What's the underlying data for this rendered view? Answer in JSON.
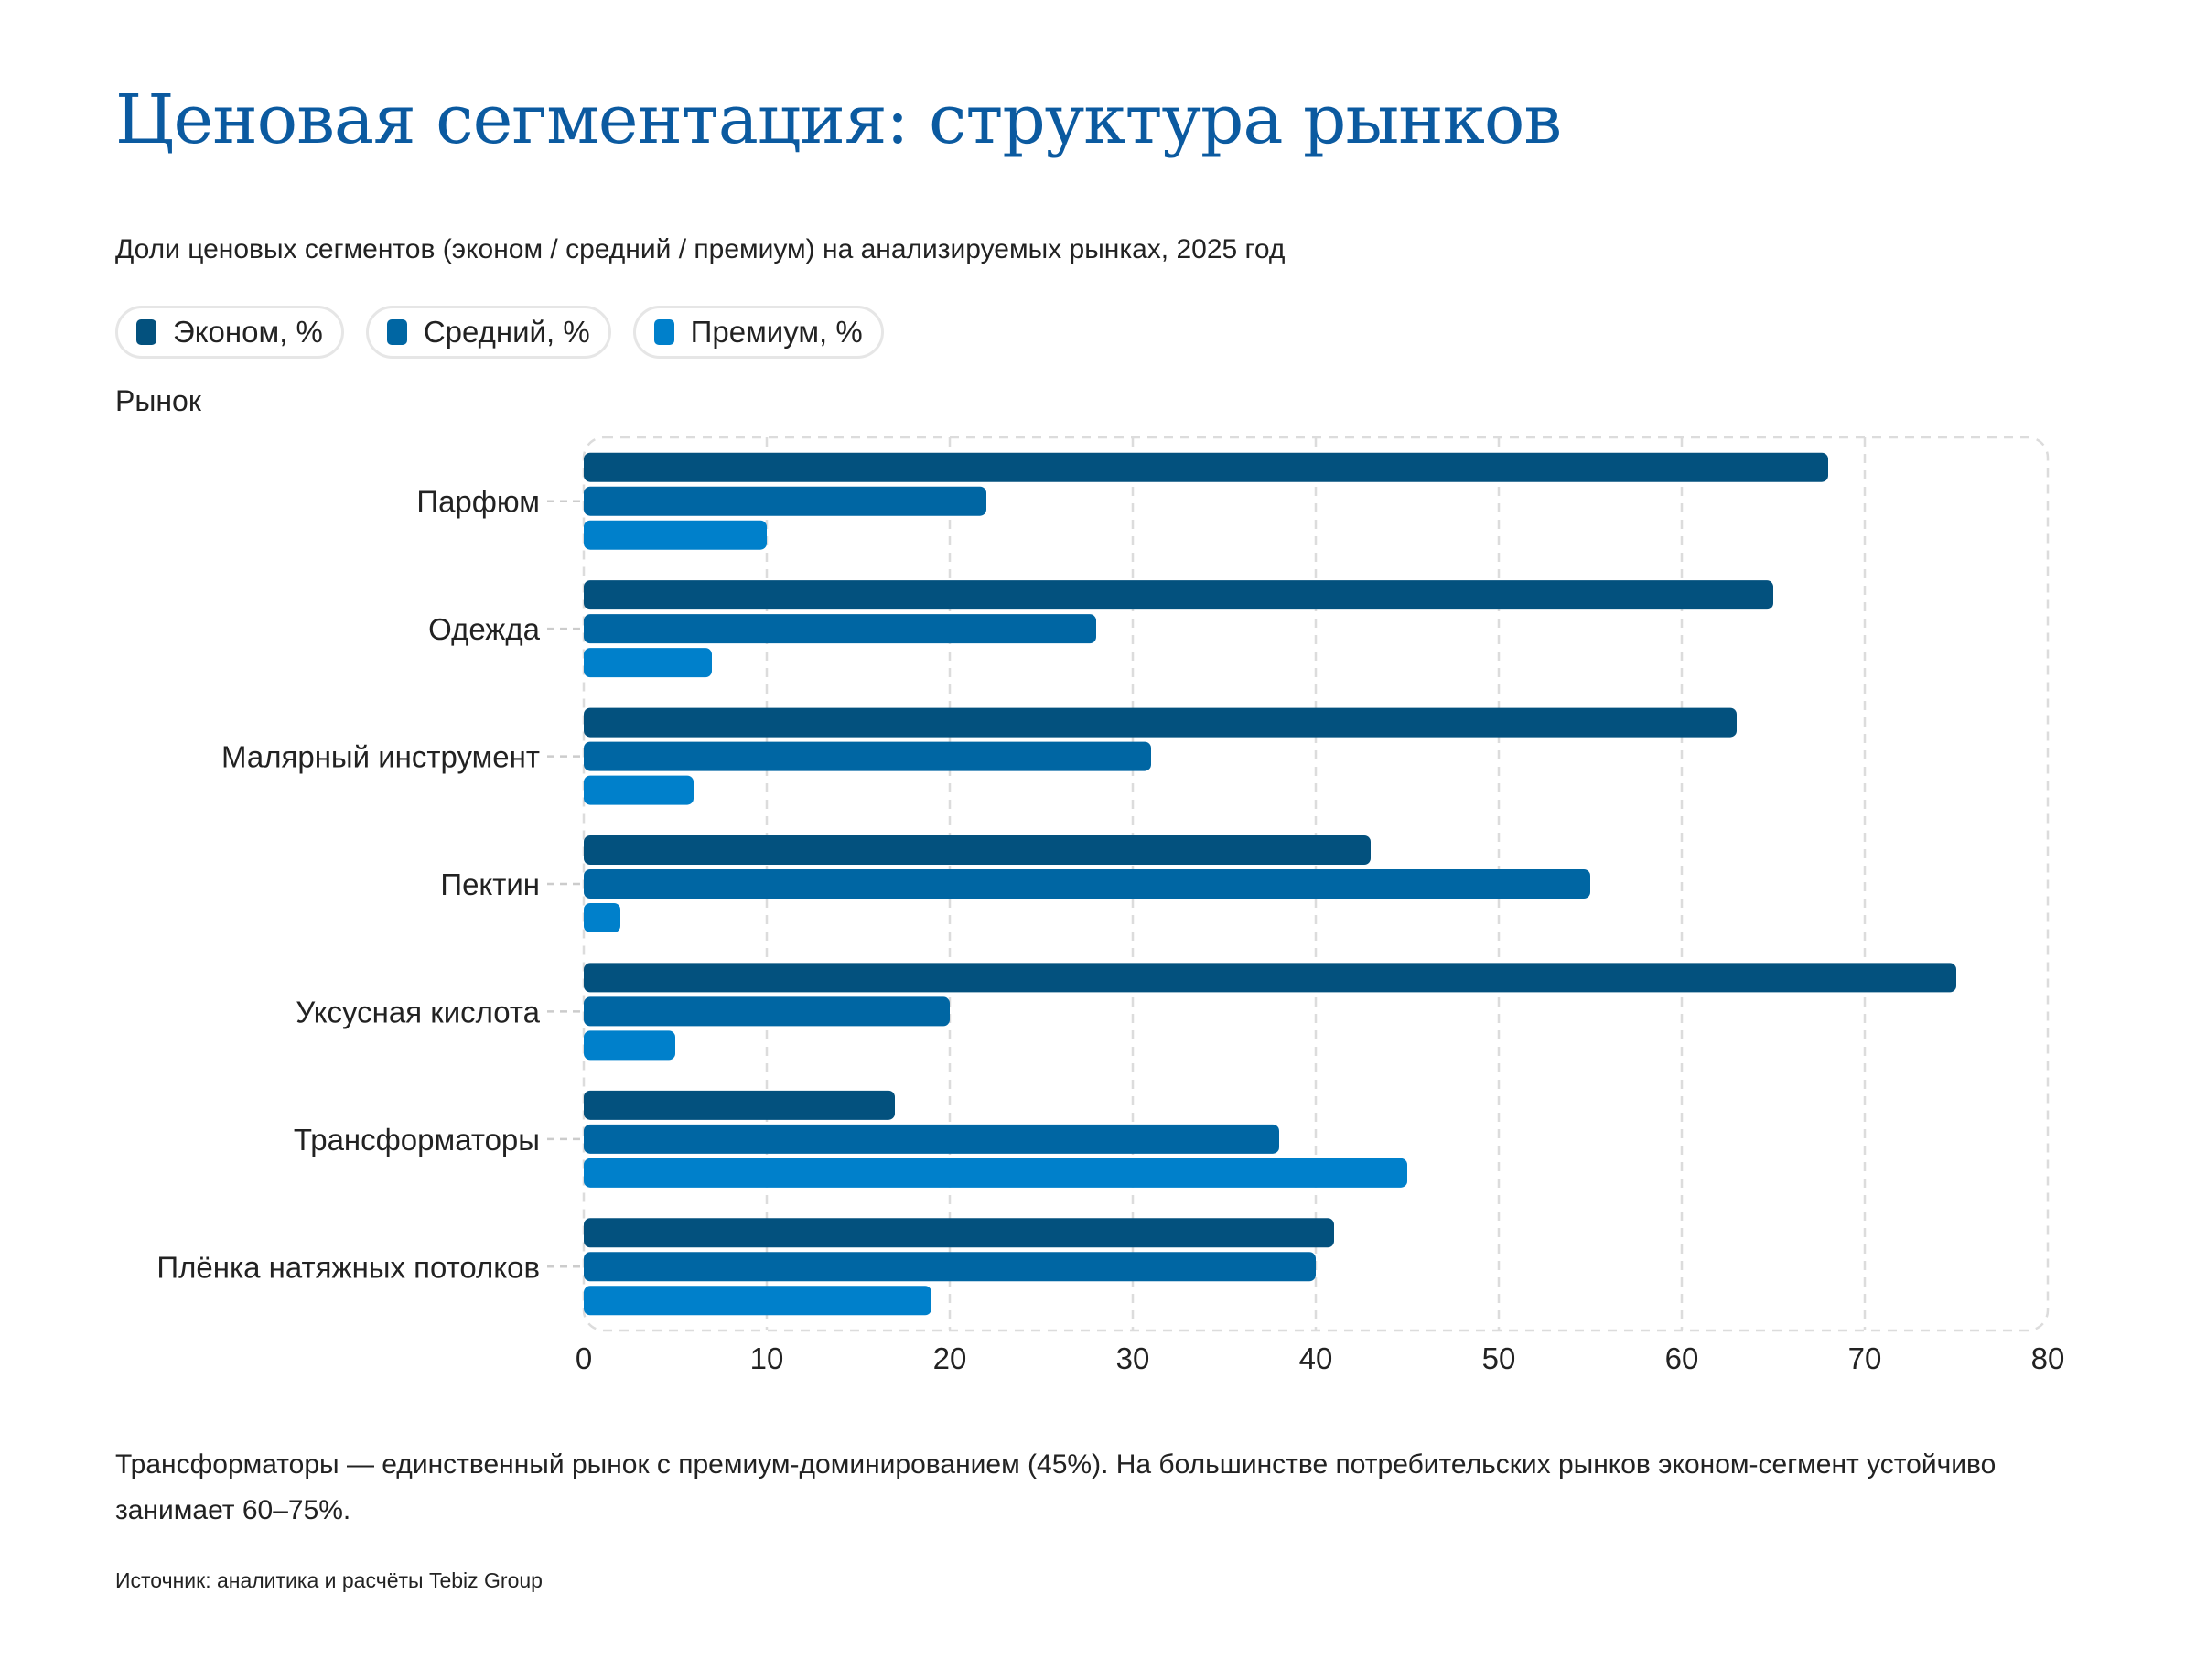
{
  "title": "Ценовая сегментация: структура рынков",
  "subtitle": "Доли ценовых сегментов (эконом / средний / премиум) на анализируемых рынках, 2025 год",
  "note": "Трансформаторы — единственный рынок с премиум-доминированием (45%). На большинстве потребительских рынков эконом-сегмент устойчиво занимает 60–75%.",
  "source": "Источник: аналитика и расчёты Tebiz Group",
  "chart_data": {
    "type": "bar",
    "orientation": "horizontal",
    "ylabel": "Рынок",
    "xlabel": "",
    "xlim": [
      0,
      80
    ],
    "xticks": [
      0,
      10,
      20,
      30,
      40,
      50,
      60,
      70,
      80
    ],
    "grid": true,
    "legend_position": "top-left",
    "categories": [
      "Парфюм",
      "Одежда",
      "Малярный инструмент",
      "Пектин",
      "Уксусная кислота",
      "Трансформаторы",
      "Плёнка натяжных потолков"
    ],
    "series": [
      {
        "name": "Эконом, %",
        "color": "#03517e",
        "values": [
          68,
          65,
          63,
          43,
          75,
          17,
          41
        ]
      },
      {
        "name": "Средний, %",
        "color": "#0066a3",
        "values": [
          22,
          28,
          31,
          55,
          20,
          38,
          40
        ]
      },
      {
        "name": "Премиум, %",
        "color": "#0080cb",
        "values": [
          10,
          7,
          6,
          2,
          5,
          45,
          19
        ]
      }
    ]
  }
}
